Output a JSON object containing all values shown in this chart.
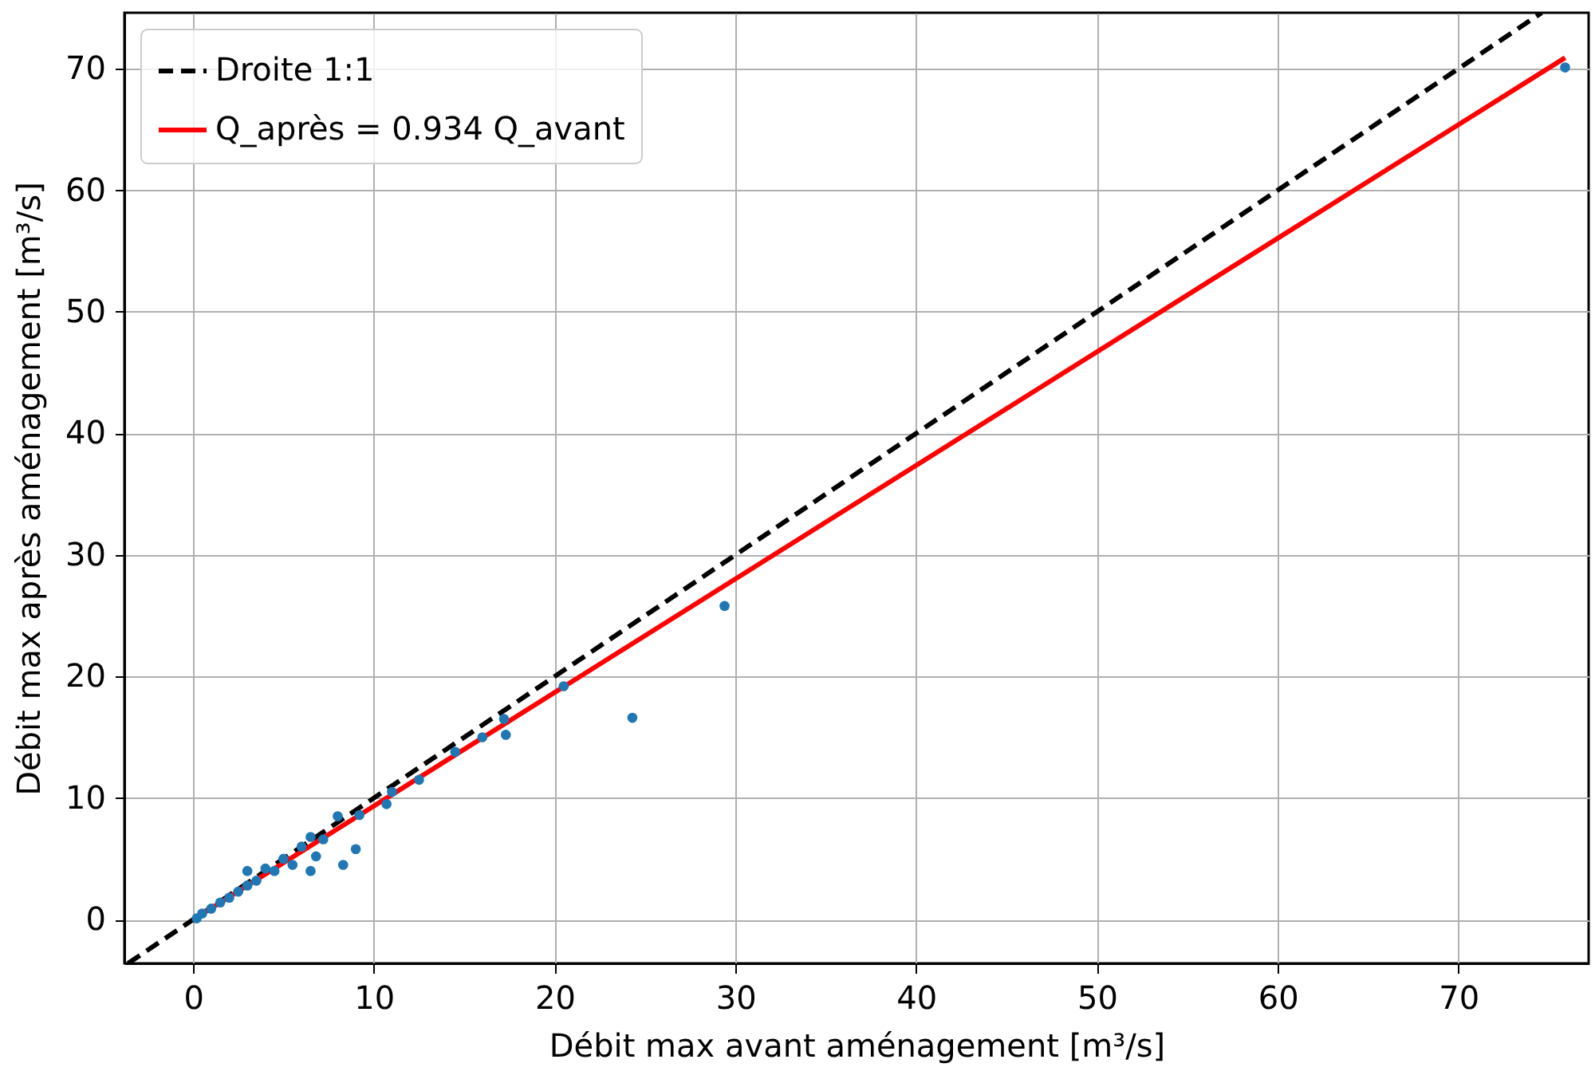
{
  "chart_data": {
    "type": "scatter",
    "xlabel": "Débit max avant aménagement [m³/s]",
    "ylabel": "Débit max après aménagement [m³/s]",
    "xlim": [
      -3.8,
      77.2
    ],
    "ylim": [
      -3.6,
      74.6
    ],
    "xticks": [
      0,
      10,
      20,
      30,
      40,
      50,
      60,
      70
    ],
    "yticks": [
      0,
      10,
      20,
      30,
      40,
      50,
      60,
      70
    ],
    "grid": true,
    "legend": "top left",
    "series": [
      {
        "color": "#1f77b4",
        "marker": "circle",
        "x": [
          0.2,
          0.5,
          1,
          1.5,
          2,
          2.5,
          3,
          3,
          3.5,
          4,
          4.5,
          5,
          5.5,
          6,
          6.5,
          6.5,
          6.8,
          7.2,
          8,
          8.3,
          9,
          9.2,
          10.7,
          11,
          12.5,
          14.5,
          16,
          17.2,
          17.3,
          20.5,
          24.3,
          29.4,
          75.9
        ],
        "values": [
          0.1,
          0.5,
          0.9,
          1.4,
          1.8,
          2.3,
          2.8,
          4,
          3.2,
          4.2,
          4,
          5,
          4.5,
          6,
          4,
          6.8,
          5.2,
          6.6,
          8.5,
          4.5,
          5.8,
          8.6,
          9.5,
          10.5,
          11.5,
          13.8,
          15,
          16.5,
          15.2,
          19.2,
          16.6,
          25.8,
          70.1
        ]
      },
      {
        "type": "line",
        "name": "Droite 1:1",
        "color": "#000000",
        "line_style": "dashed",
        "x": [
          -3.6,
          74.6
        ],
        "values": [
          -3.6,
          74.6
        ]
      },
      {
        "type": "line",
        "name": "Q_après = 0.934 Q_avant",
        "color": "#ff0000",
        "line_style": "solid",
        "x": [
          0,
          75.9
        ],
        "values": [
          0,
          70.9
        ]
      }
    ]
  }
}
